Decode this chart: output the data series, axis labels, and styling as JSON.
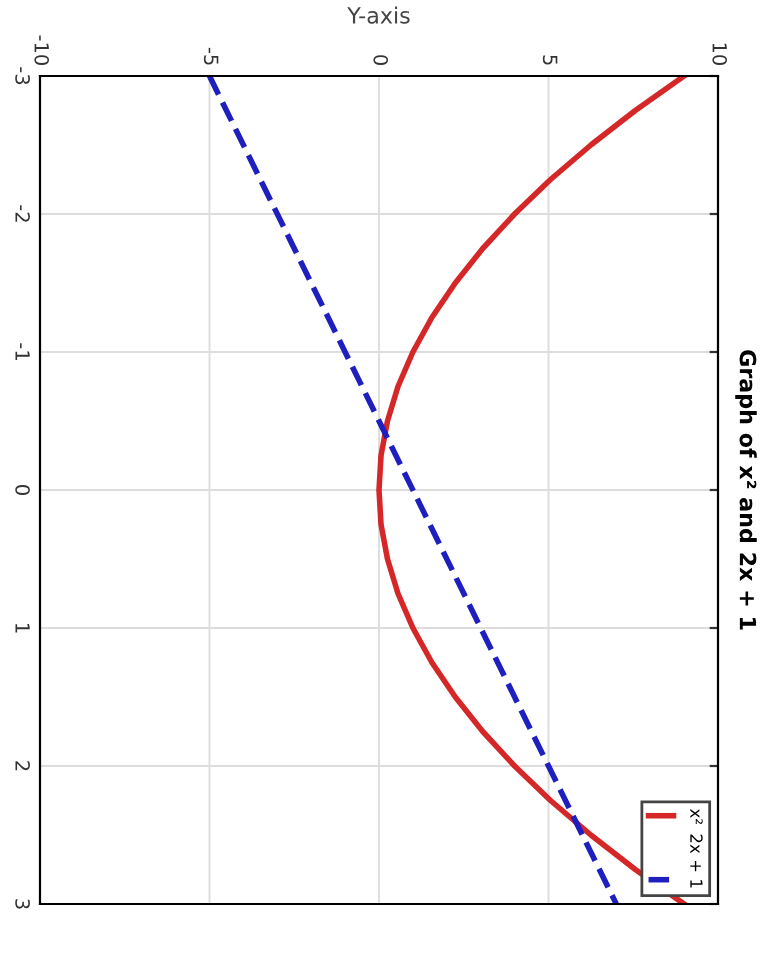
{
  "chart_data": {
    "type": "line",
    "title": "Graph of x² and 2x + 1",
    "xlabel": "Y-axis",
    "xlim": [
      -10,
      10
    ],
    "ylim": [
      3,
      -3
    ],
    "xticks": [
      -10,
      -5,
      0,
      5,
      10
    ],
    "yticks": [
      -3,
      -2,
      -1,
      0,
      1,
      2,
      3
    ],
    "grid": true,
    "legend": "bottom right",
    "series": [
      {
        "name": "x²",
        "color": "#d62728",
        "line_style": "solid",
        "x": [
          9,
          7.56,
          6.25,
          5.06,
          4,
          3.06,
          2.25,
          1.56,
          1,
          0.56,
          0.25,
          0.06,
          0,
          0.06,
          0.25,
          0.56,
          1,
          1.56,
          2.25,
          3.06,
          4,
          5.06,
          6.25,
          7.56,
          9
        ],
        "values": [
          -3,
          -2.75,
          -2.5,
          -2.25,
          -2,
          -1.75,
          -1.5,
          -1.25,
          -1,
          -0.75,
          -0.5,
          -0.25,
          0,
          0.25,
          0.5,
          0.75,
          1,
          1.25,
          1.5,
          1.75,
          2,
          2.25,
          2.5,
          2.75,
          3
        ]
      },
      {
        "name": "2x + 1",
        "color": "#1f1fbf",
        "line_style": "dashed",
        "x": [
          -5,
          7
        ],
        "values": [
          -3,
          3
        ]
      }
    ]
  }
}
